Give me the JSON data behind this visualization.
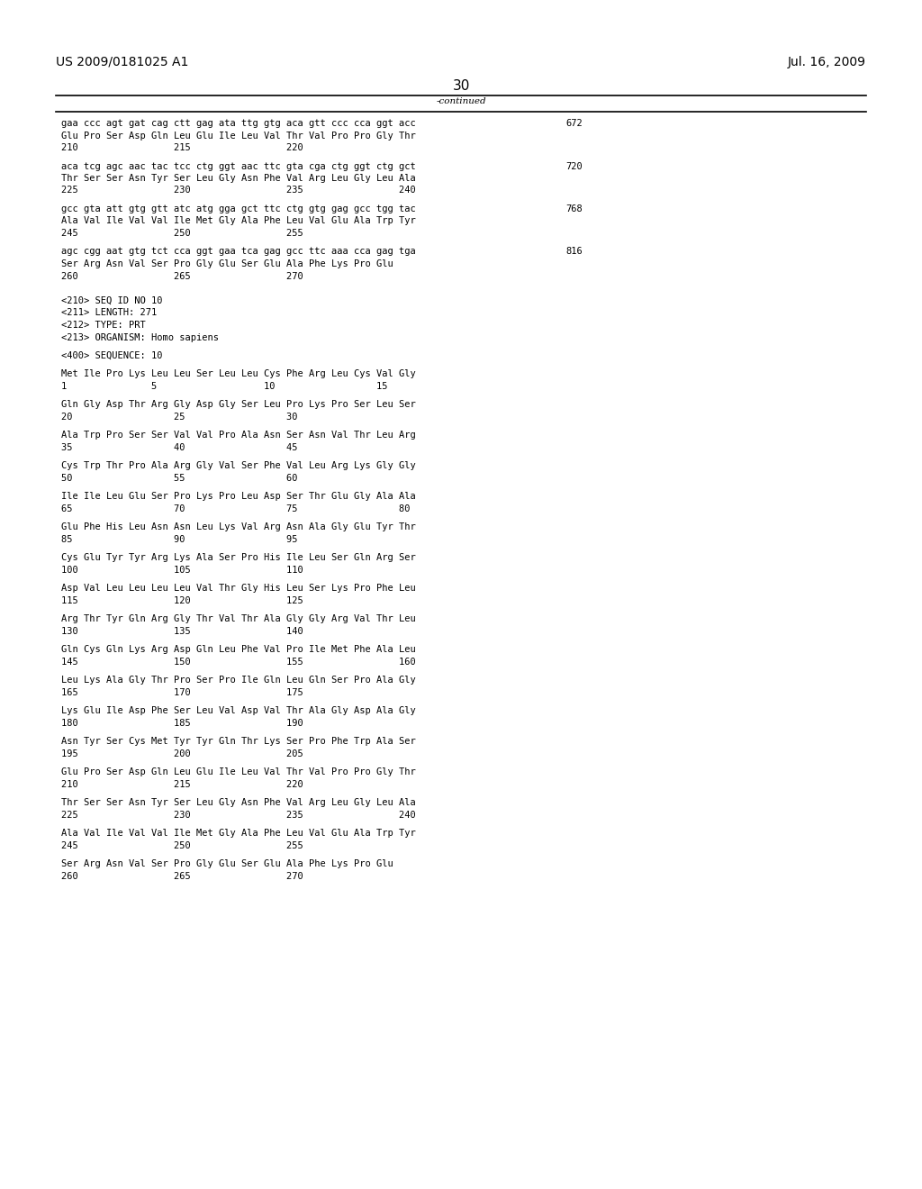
{
  "header_left": "US 2009/0181025 A1",
  "header_right": "Jul. 16, 2009",
  "page_number": "30",
  "continued_label": "-continued",
  "background_color": "#ffffff",
  "text_color": "#000000",
  "font_size_header": 10,
  "font_size_body": 7.5,
  "font_size_page": 11,
  "content_lines": [
    [
      "gaa ccc agt gat cag ctt gag ata ttg gtg aca gtt ccc cca ggt acc",
      "672"
    ],
    [
      "Glu Pro Ser Asp Gln Leu Glu Ile Leu Val Thr Val Pro Pro Gly Thr",
      ""
    ],
    [
      "210                 215                 220",
      ""
    ],
    [
      "",
      ""
    ],
    [
      "aca tcg agc aac tac tcc ctg ggt aac ttc gta cga ctg ggt ctg gct",
      "720"
    ],
    [
      "Thr Ser Ser Asn Tyr Ser Leu Gly Asn Phe Val Arg Leu Gly Leu Ala",
      ""
    ],
    [
      "225                 230                 235                 240",
      ""
    ],
    [
      "",
      ""
    ],
    [
      "gcc gta att gtg gtt atc atg gga gct ttc ctg gtg gag gcc tgg tac",
      "768"
    ],
    [
      "Ala Val Ile Val Val Ile Met Gly Ala Phe Leu Val Glu Ala Trp Tyr",
      ""
    ],
    [
      "245                 250                 255",
      ""
    ],
    [
      "",
      ""
    ],
    [
      "agc cgg aat gtg tct cca ggt gaa tca gag gcc ttc aaa cca gag tga",
      "816"
    ],
    [
      "Ser Arg Asn Val Ser Pro Gly Glu Ser Glu Ala Phe Lys Pro Glu",
      ""
    ],
    [
      "260                 265                 270",
      ""
    ],
    [
      "",
      ""
    ],
    [
      "",
      ""
    ],
    [
      "<210> SEQ ID NO 10",
      ""
    ],
    [
      "<211> LENGTH: 271",
      ""
    ],
    [
      "<212> TYPE: PRT",
      ""
    ],
    [
      "<213> ORGANISM: Homo sapiens",
      ""
    ],
    [
      "",
      ""
    ],
    [
      "<400> SEQUENCE: 10",
      ""
    ],
    [
      "",
      ""
    ],
    [
      "Met Ile Pro Lys Leu Leu Ser Leu Leu Cys Phe Arg Leu Cys Val Gly",
      ""
    ],
    [
      "1               5                   10                  15",
      ""
    ],
    [
      "",
      ""
    ],
    [
      "Gln Gly Asp Thr Arg Gly Asp Gly Ser Leu Pro Lys Pro Ser Leu Ser",
      ""
    ],
    [
      "20                  25                  30",
      ""
    ],
    [
      "",
      ""
    ],
    [
      "Ala Trp Pro Ser Ser Val Val Pro Ala Asn Ser Asn Val Thr Leu Arg",
      ""
    ],
    [
      "35                  40                  45",
      ""
    ],
    [
      "",
      ""
    ],
    [
      "Cys Trp Thr Pro Ala Arg Gly Val Ser Phe Val Leu Arg Lys Gly Gly",
      ""
    ],
    [
      "50                  55                  60",
      ""
    ],
    [
      "",
      ""
    ],
    [
      "Ile Ile Leu Glu Ser Pro Lys Pro Leu Asp Ser Thr Glu Gly Ala Ala",
      ""
    ],
    [
      "65                  70                  75                  80",
      ""
    ],
    [
      "",
      ""
    ],
    [
      "Glu Phe His Leu Asn Asn Leu Lys Val Arg Asn Ala Gly Glu Tyr Thr",
      ""
    ],
    [
      "85                  90                  95",
      ""
    ],
    [
      "",
      ""
    ],
    [
      "Cys Glu Tyr Tyr Arg Lys Ala Ser Pro His Ile Leu Ser Gln Arg Ser",
      ""
    ],
    [
      "100                 105                 110",
      ""
    ],
    [
      "",
      ""
    ],
    [
      "Asp Val Leu Leu Leu Leu Val Thr Gly His Leu Ser Lys Pro Phe Leu",
      ""
    ],
    [
      "115                 120                 125",
      ""
    ],
    [
      "",
      ""
    ],
    [
      "Arg Thr Tyr Gln Arg Gly Thr Val Thr Ala Gly Gly Arg Val Thr Leu",
      ""
    ],
    [
      "130                 135                 140",
      ""
    ],
    [
      "",
      ""
    ],
    [
      "Gln Cys Gln Lys Arg Asp Gln Leu Phe Val Pro Ile Met Phe Ala Leu",
      ""
    ],
    [
      "145                 150                 155                 160",
      ""
    ],
    [
      "",
      ""
    ],
    [
      "Leu Lys Ala Gly Thr Pro Ser Pro Ile Gln Leu Gln Ser Pro Ala Gly",
      ""
    ],
    [
      "165                 170                 175",
      ""
    ],
    [
      "",
      ""
    ],
    [
      "Lys Glu Ile Asp Phe Ser Leu Val Asp Val Thr Ala Gly Asp Ala Gly",
      ""
    ],
    [
      "180                 185                 190",
      ""
    ],
    [
      "",
      ""
    ],
    [
      "Asn Tyr Ser Cys Met Tyr Tyr Gln Thr Lys Ser Pro Phe Trp Ala Ser",
      ""
    ],
    [
      "195                 200                 205",
      ""
    ],
    [
      "",
      ""
    ],
    [
      "Glu Pro Ser Asp Gln Leu Glu Ile Leu Val Thr Val Pro Pro Gly Thr",
      ""
    ],
    [
      "210                 215                 220",
      ""
    ],
    [
      "",
      ""
    ],
    [
      "Thr Ser Ser Asn Tyr Ser Leu Gly Asn Phe Val Arg Leu Gly Leu Ala",
      ""
    ],
    [
      "225                 230                 235                 240",
      ""
    ],
    [
      "",
      ""
    ],
    [
      "Ala Val Ile Val Val Ile Met Gly Ala Phe Leu Val Glu Ala Trp Tyr",
      ""
    ],
    [
      "245                 250                 255",
      ""
    ],
    [
      "",
      ""
    ],
    [
      "Ser Arg Asn Val Ser Pro Gly Glu Ser Glu Ala Phe Lys Pro Glu",
      ""
    ],
    [
      "260                 265                 270",
      ""
    ]
  ]
}
